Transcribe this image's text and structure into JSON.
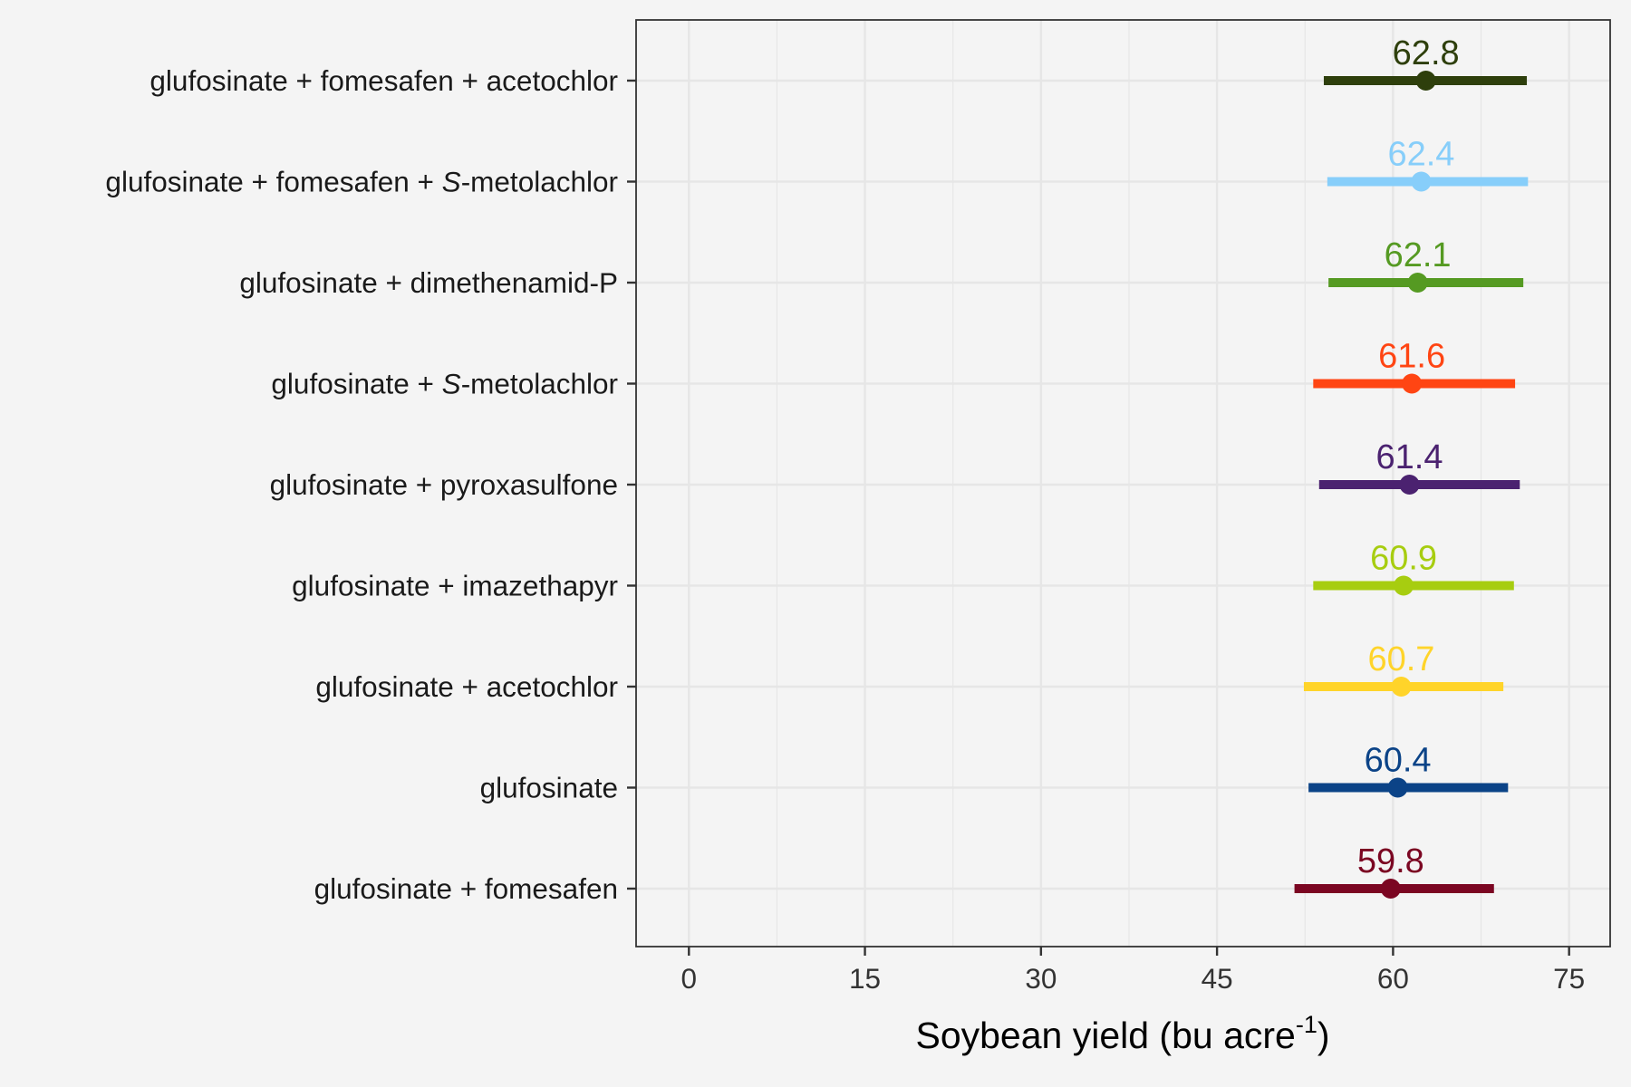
{
  "chart_data": {
    "type": "scatter",
    "subtype": "dot-and-interval",
    "orientation": "horizontal",
    "title": "",
    "xlabel": "Soybean yield (bu acre",
    "xlabel_superscript": "-1",
    "xlabel_close": ")",
    "ylabel": "",
    "xlim": [
      -4.5,
      78.5
    ],
    "x_ticks": [
      0,
      15,
      30,
      45,
      60,
      75
    ],
    "x_tick_labels": [
      "0",
      "15",
      "30",
      "45",
      "60",
      "75"
    ],
    "grid": true,
    "legend": "none",
    "background_color": "#f4f4f4",
    "panel_border_color": "#333333",
    "grid_color": "#e6e6e6",
    "categories": [
      {
        "prefix": "glufosinate + fomesafen + acetochlor",
        "italic": "",
        "suffix": "",
        "estimate": 62.8,
        "low": 54.1,
        "high": 71.4,
        "label": "62.8",
        "color": "#2e3f0c"
      },
      {
        "prefix": "glufosinate + fomesafen + ",
        "italic": "S",
        "suffix": "-metolachlor",
        "estimate": 62.4,
        "low": 54.4,
        "high": 71.5,
        "label": "62.4",
        "color": "#87cefa"
      },
      {
        "prefix": "glufosinate + dimethenamid-P",
        "italic": "",
        "suffix": "",
        "estimate": 62.1,
        "low": 54.5,
        "high": 71.1,
        "label": "62.1",
        "color": "#559a22"
      },
      {
        "prefix": "glufosinate + ",
        "italic": "S",
        "suffix": "-metolachlor",
        "estimate": 61.6,
        "low": 53.2,
        "high": 70.4,
        "label": "61.6",
        "color": "#ff4513"
      },
      {
        "prefix": "glufosinate + pyroxasulfone",
        "italic": "",
        "suffix": "",
        "estimate": 61.4,
        "low": 53.7,
        "high": 70.8,
        "label": "61.4",
        "color": "#4b2270"
      },
      {
        "prefix": "glufosinate + imazethapyr",
        "italic": "",
        "suffix": "",
        "estimate": 60.9,
        "low": 53.2,
        "high": 70.3,
        "label": "60.9",
        "color": "#a7cd10"
      },
      {
        "prefix": "glufosinate + acetochlor",
        "italic": "",
        "suffix": "",
        "estimate": 60.7,
        "low": 52.4,
        "high": 69.4,
        "label": "60.7",
        "color": "#ffd42a"
      },
      {
        "prefix": "glufosinate",
        "italic": "",
        "suffix": "",
        "estimate": 60.4,
        "low": 52.8,
        "high": 69.8,
        "label": "60.4",
        "color": "#0b4387"
      },
      {
        "prefix": "glufosinate + fomesafen",
        "italic": "",
        "suffix": "",
        "estimate": 59.8,
        "low": 51.6,
        "high": 68.6,
        "label": "59.8",
        "color": "#7b0622"
      }
    ]
  }
}
